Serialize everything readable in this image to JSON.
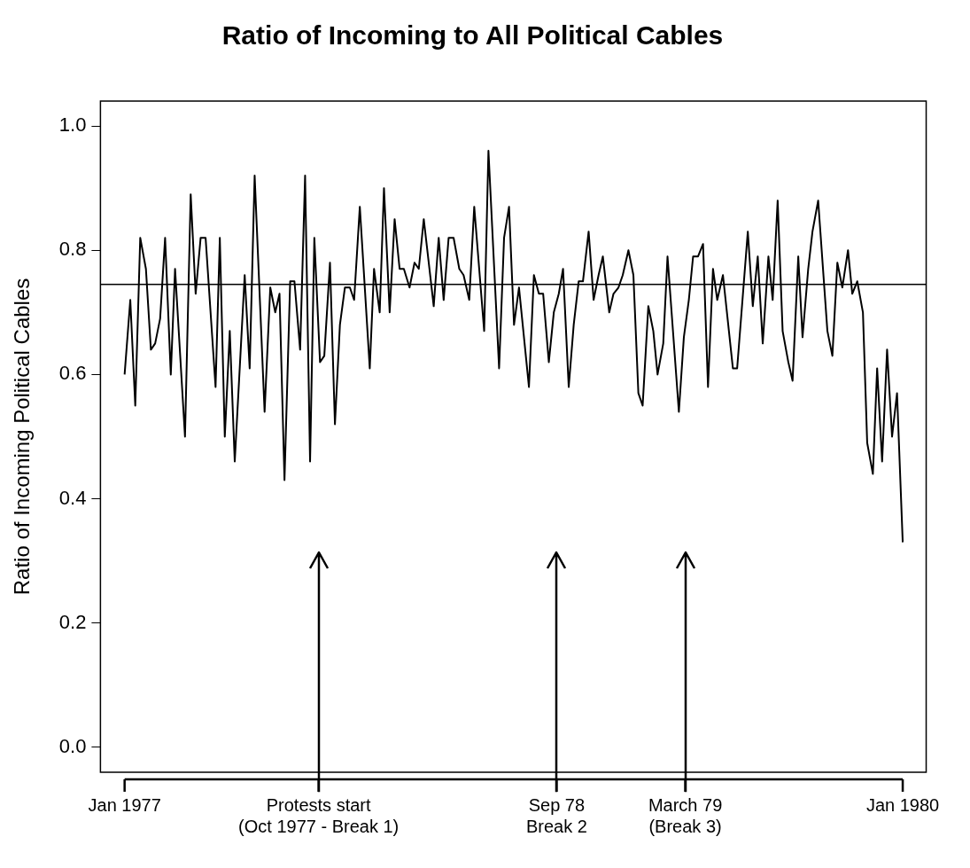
{
  "chart_data": {
    "type": "line",
    "title": "Ratio of Incoming to All Political Cables",
    "ylabel": "Ratio of Incoming Political Cables",
    "x": [
      "1977-01-01",
      "1977-01-09",
      "1977-01-16",
      "1977-01-23",
      "1977-01-31",
      "1977-02-07",
      "1977-02-13",
      "1977-02-20",
      "1977-02-27",
      "1977-03-07",
      "1977-03-13",
      "1977-03-27",
      "1977-04-04",
      "1977-04-11",
      "1977-04-18",
      "1977-04-25",
      "1977-05-09",
      "1977-05-15",
      "1977-05-22",
      "1977-05-29",
      "1977-06-05",
      "1977-06-19",
      "1977-06-26",
      "1977-07-03",
      "1977-07-17",
      "1977-07-25",
      "1977-08-01",
      "1977-08-07",
      "1977-08-14",
      "1977-08-22",
      "1977-08-28",
      "1977-09-05",
      "1977-09-12",
      "1977-09-19",
      "1977-09-25",
      "1977-10-03",
      "1977-10-09",
      "1977-10-17",
      "1977-10-24",
      "1977-10-31",
      "1977-11-07",
      "1977-11-14",
      "1977-11-20",
      "1977-11-28",
      "1977-12-12",
      "1977-12-18",
      "1977-12-26",
      "1978-01-01",
      "1978-01-09",
      "1978-01-16",
      "1978-01-23",
      "1978-01-29",
      "1978-02-06",
      "1978-02-13",
      "1978-02-19",
      "1978-02-26",
      "1978-03-12",
      "1978-03-19",
      "1978-03-26",
      "1978-04-02",
      "1978-04-09",
      "1978-04-17",
      "1978-04-23",
      "1978-05-01",
      "1978-05-08",
      "1978-05-22",
      "1978-05-28",
      "1978-06-12",
      "1978-06-19",
      "1978-06-26",
      "1978-07-03",
      "1978-07-10",
      "1978-07-24",
      "1978-07-31",
      "1978-08-07",
      "1978-08-13",
      "1978-08-21",
      "1978-08-28",
      "1978-09-04",
      "1978-09-10",
      "1978-09-18",
      "1978-09-25",
      "1978-10-02",
      "1978-10-08",
      "1978-10-16",
      "1978-10-23",
      "1978-10-30",
      "1978-11-05",
      "1978-11-14",
      "1978-11-20",
      "1978-11-27",
      "1978-12-03",
      "1978-12-11",
      "1978-12-18",
      "1978-12-25",
      "1978-12-31",
      "1979-01-08",
      "1979-01-15",
      "1979-01-21",
      "1979-01-29",
      "1979-02-04",
      "1979-02-20",
      "1979-02-27",
      "1979-03-06",
      "1979-03-12",
      "1979-03-19",
      "1979-03-26",
      "1979-04-02",
      "1979-04-09",
      "1979-04-15",
      "1979-04-23",
      "1979-05-07",
      "1979-05-13",
      "1979-05-28",
      "1979-06-04",
      "1979-06-11",
      "1979-06-18",
      "1979-06-26",
      "1979-07-02",
      "1979-07-09",
      "1979-07-16",
      "1979-07-24",
      "1979-07-30",
      "1979-08-07",
      "1979-08-13",
      "1979-08-21",
      "1979-08-27",
      "1979-09-04",
      "1979-09-17",
      "1979-09-24",
      "1979-10-01",
      "1979-10-08",
      "1979-10-16",
      "1979-10-22",
      "1979-10-29",
      "1979-11-06",
      "1979-11-12",
      "1979-11-20",
      "1979-11-26",
      "1979-12-03",
      "1979-12-10",
      "1979-12-17",
      "1979-12-24",
      "1980-01-01"
    ],
    "series": [
      {
        "color": "#000000",
        "values": [
          0.6,
          0.72,
          0.55,
          0.82,
          0.77,
          0.64,
          0.65,
          0.69,
          0.82,
          0.6,
          0.77,
          0.5,
          0.89,
          0.73,
          0.82,
          0.82,
          0.58,
          0.82,
          0.5,
          0.67,
          0.46,
          0.76,
          0.61,
          0.92,
          0.54,
          0.74,
          0.7,
          0.73,
          0.43,
          0.75,
          0.75,
          0.64,
          0.92,
          0.46,
          0.82,
          0.62,
          0.63,
          0.78,
          0.52,
          0.68,
          0.74,
          0.74,
          0.72,
          0.87,
          0.61,
          0.77,
          0.7,
          0.9,
          0.7,
          0.85,
          0.77,
          0.77,
          0.74,
          0.78,
          0.77,
          0.85,
          0.71,
          0.82,
          0.72,
          0.82,
          0.82,
          0.77,
          0.76,
          0.72,
          0.87,
          0.67,
          0.96,
          0.61,
          0.82,
          0.87,
          0.68,
          0.74,
          0.58,
          0.76,
          0.73,
          0.73,
          0.62,
          0.7,
          0.73,
          0.77,
          0.58,
          0.68,
          0.75,
          0.75,
          0.83,
          0.72,
          0.76,
          0.79,
          0.7,
          0.73,
          0.74,
          0.76,
          0.8,
          0.76,
          0.57,
          0.55,
          0.71,
          0.67,
          0.6,
          0.65,
          0.79,
          0.54,
          0.66,
          0.72,
          0.79,
          0.79,
          0.81,
          0.58,
          0.77,
          0.72,
          0.76,
          0.61,
          0.61,
          0.83,
          0.71,
          0.79,
          0.65,
          0.79,
          0.72,
          0.88,
          0.67,
          0.62,
          0.59,
          0.79,
          0.66,
          0.77,
          0.83,
          0.88,
          0.67,
          0.63,
          0.78,
          0.74,
          0.8,
          0.73,
          0.75,
          0.7,
          0.49,
          0.44,
          0.61,
          0.46,
          0.64,
          0.5,
          0.57,
          0.33
        ]
      }
    ],
    "xlim": [
      "1976-11-28",
      "1980-02-03"
    ],
    "xticks": [
      {
        "value": "1977-01",
        "label": "Jan 1977"
      },
      {
        "value": "1977-10",
        "label": "Protests start\n(Oct 1977 - Break 1)"
      },
      {
        "value": "1978-09",
        "label": "Sep 78\nBreak 2"
      },
      {
        "value": "1979-03",
        "label": "March 79\n(Break 3)"
      },
      {
        "value": "1980-01",
        "label": "Jan 1980"
      }
    ],
    "ylim": [
      -0.04,
      1.04
    ],
    "yticks": [
      {
        "value": 0,
        "label": "0.0"
      },
      {
        "value": 0.2,
        "label": "0.2"
      },
      {
        "value": 0.4,
        "label": "0.4"
      },
      {
        "value": 0.6,
        "label": "0.6"
      },
      {
        "value": 0.8,
        "label": "0.8"
      },
      {
        "value": 1,
        "label": "1.0"
      }
    ],
    "ref_lines": [
      {
        "axis": "y",
        "value": 0.745,
        "color": "#000000"
      }
    ],
    "grid": false,
    "legend": false,
    "marker": "none",
    "line_style": "solid"
  }
}
